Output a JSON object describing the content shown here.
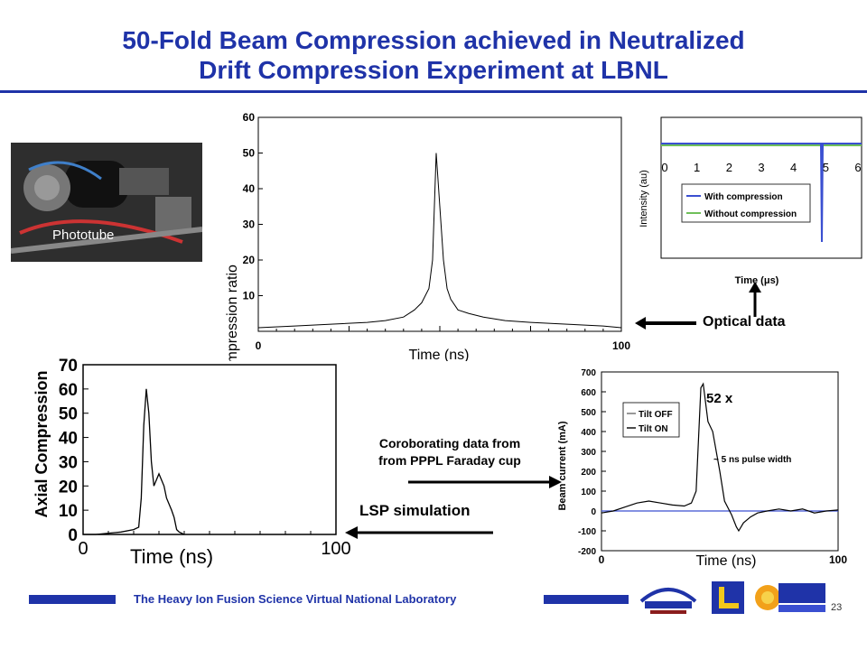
{
  "title": {
    "line1": "50-Fold Beam Compression achieved in Neutralized",
    "line2": "Drift Compression Experiment at LBNL"
  },
  "photo": {
    "label": "Phototube"
  },
  "optical_inset": {
    "ylabel": "Intensity (au)",
    "xlabel": "Time (μs)",
    "legend": [
      "With compression",
      "Without compression"
    ],
    "series_colors": [
      "#3a4fd1",
      "#6fbf5a"
    ]
  },
  "labels": {
    "optical_data": "Optical data",
    "corroborating_line1": "Coroborating data from",
    "corroborating_line2": "from  PPPL Faraday cup",
    "lsp_simulation": "LSP simulation"
  },
  "footer": {
    "lab": "The Heavy Ion Fusion Science Virtual National Laboratory",
    "page": "23",
    "accent": "#1f33a8"
  },
  "chart_data": [
    {
      "type": "line",
      "xlabel": "Time (ns)",
      "ylabel": "Compression ratio",
      "xlim": [
        0,
        100
      ],
      "ylim": [
        0,
        60
      ],
      "x_ticks": [
        "0",
        "100"
      ],
      "y_ticks": [
        "10",
        "20",
        "30",
        "40",
        "50",
        "60"
      ],
      "x": [
        0,
        10,
        20,
        30,
        35,
        40,
        43,
        45,
        47,
        48,
        49,
        50,
        51,
        52,
        53,
        55,
        58,
        62,
        68,
        75,
        85,
        95,
        100
      ],
      "values": [
        1,
        1.5,
        2,
        2.5,
        3,
        4,
        6,
        8,
        12,
        20,
        50,
        35,
        20,
        12,
        9,
        6,
        5,
        4,
        3,
        2.5,
        2,
        1.5,
        1
      ]
    },
    {
      "type": "line",
      "xlabel": "Time (μs)",
      "ylabel": "Intensity (au)",
      "xlim": [
        0,
        6
      ],
      "x_ticks": [
        "0",
        "1",
        "2",
        "3",
        "4",
        "5",
        "6"
      ],
      "series": [
        {
          "name": "With compression"
        },
        {
          "name": "Without compression"
        }
      ]
    },
    {
      "type": "line",
      "ylabel": "Axial Compression",
      "xlabel": "Time (ns)",
      "xlim": [
        0,
        100
      ],
      "ylim": [
        0,
        70
      ],
      "x_ticks": [
        "0",
        "100"
      ],
      "y_ticks": [
        "0",
        "10",
        "20",
        "30",
        "40",
        "50",
        "60",
        "70"
      ],
      "x": [
        0,
        5,
        15,
        20,
        22,
        23,
        24,
        25,
        26,
        27,
        28,
        30,
        32,
        33,
        35,
        36,
        37,
        38,
        40
      ],
      "values": [
        0,
        0,
        1,
        2,
        3,
        15,
        45,
        60,
        50,
        30,
        20,
        25,
        20,
        15,
        10,
        7,
        2,
        1,
        0
      ]
    },
    {
      "type": "line",
      "xlabel": "Time (ns)",
      "ylabel": "Beam current  (mA)",
      "xlim": [
        0,
        100
      ],
      "ylim": [
        -200,
        700
      ],
      "x_ticks": [
        "0",
        "100"
      ],
      "y_ticks": [
        "700",
        "600",
        "500",
        "400",
        "300",
        "200",
        "100",
        "0",
        "-100",
        "-200"
      ],
      "annotations": [
        "52 x",
        "~ 5 ns pulse width"
      ],
      "series": [
        {
          "name": "Tilt OFF",
          "x": [
            0,
            50,
            100
          ],
          "values": [
            0,
            0,
            0
          ]
        },
        {
          "name": "Tilt ON",
          "x": [
            0,
            5,
            10,
            15,
            20,
            25,
            30,
            35,
            38,
            40,
            42,
            43,
            45,
            47,
            50,
            52,
            55,
            57,
            58,
            60,
            63,
            66,
            70,
            75,
            80,
            85,
            90,
            95,
            100
          ],
          "values": [
            -10,
            0,
            20,
            40,
            50,
            40,
            30,
            25,
            40,
            100,
            620,
            640,
            450,
            400,
            200,
            50,
            -20,
            -80,
            -100,
            -60,
            -30,
            -10,
            0,
            10,
            0,
            10,
            -10,
            0,
            5
          ]
        }
      ]
    }
  ]
}
